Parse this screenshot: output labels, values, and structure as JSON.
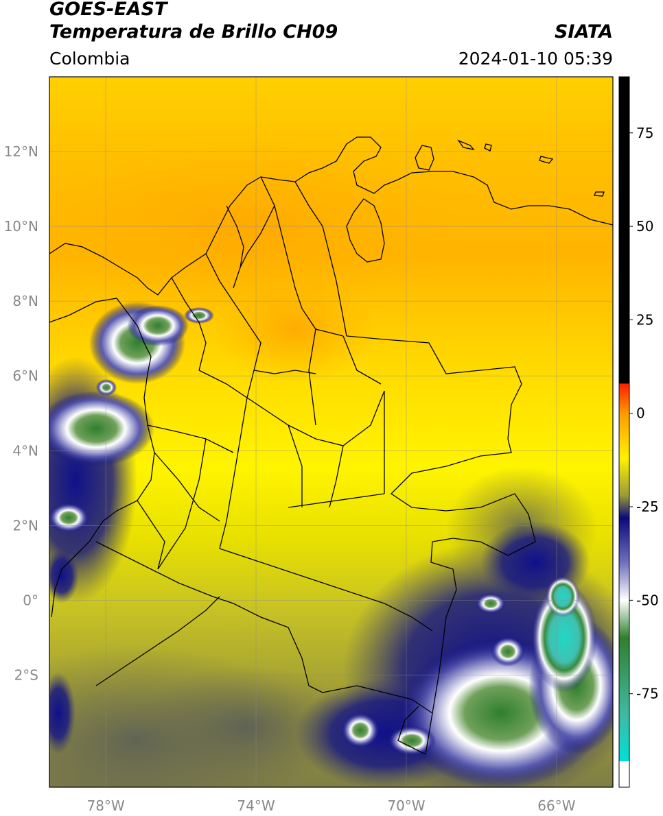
{
  "header": {
    "satellite": "GOES-EAST",
    "product": "Temperatura de Brillo CH09",
    "region": "Colombia",
    "agency": "SIATA",
    "timestamp": "2024-01-10 05:39"
  },
  "map": {
    "lon_range": [
      -79.5,
      -64.5
    ],
    "lat_range": [
      -5.0,
      14.0
    ],
    "lat_ticks": [
      {
        "value": 12,
        "label": "12°N"
      },
      {
        "value": 10,
        "label": "10°N"
      },
      {
        "value": 8,
        "label": "8°N"
      },
      {
        "value": 6,
        "label": "6°N"
      },
      {
        "value": 4,
        "label": "4°N"
      },
      {
        "value": 2,
        "label": "2°N"
      },
      {
        "value": 0,
        "label": "0°"
      },
      {
        "value": -2,
        "label": "2°S"
      }
    ],
    "lon_ticks": [
      {
        "value": -78,
        "label": "78°W"
      },
      {
        "value": -74,
        "label": "74°W"
      },
      {
        "value": -70,
        "label": "70°W"
      },
      {
        "value": -66,
        "label": "66°W"
      }
    ]
  },
  "colorbar": {
    "range": [
      -100,
      90
    ],
    "ticks": [
      {
        "value": 75,
        "label": "75"
      },
      {
        "value": 50,
        "label": "50"
      },
      {
        "value": 25,
        "label": "25"
      },
      {
        "value": 0,
        "label": "0"
      },
      {
        "value": -25,
        "label": "-25"
      },
      {
        "value": -50,
        "label": "-50"
      },
      {
        "value": -75,
        "label": "-75"
      }
    ],
    "colors": {
      "black": "#000000",
      "red": "#ff2000",
      "orange": "#ff9a00",
      "yellow": "#fff200",
      "olive": "#9a9a38",
      "navy": "#0a0a7a",
      "white": "#ffffff",
      "green": "#2f7f2f",
      "cyan": "#00e0d8"
    }
  }
}
